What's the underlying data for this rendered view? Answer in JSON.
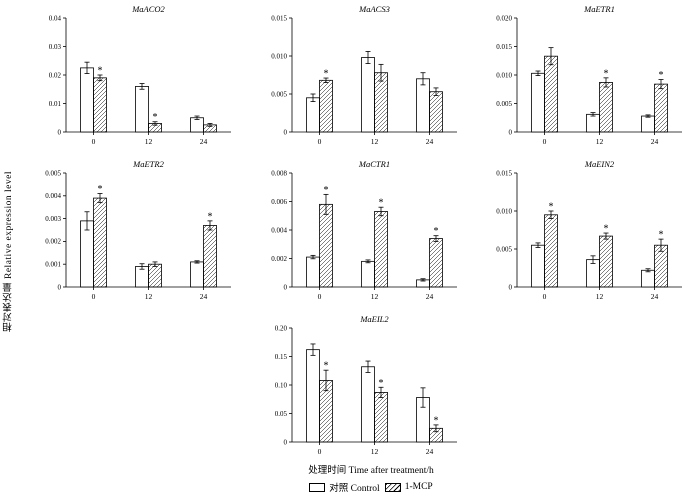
{
  "axis": {
    "ylabel": "相对表达量 Relative expression level",
    "xlabel": "处理时间 Time after treatment/h"
  },
  "legend": {
    "control": "对照 Control",
    "mcp": "1-MCP"
  },
  "chart_data": [
    {
      "type": "bar",
      "title": "MaACO2",
      "categories": [
        "0",
        "12",
        "24"
      ],
      "ylim": [
        0,
        0.04
      ],
      "yticks": [
        0,
        0.01,
        0.02,
        0.03,
        0.04
      ],
      "ytick_labels": [
        "0",
        "0.01",
        "0.02",
        "0.03",
        "0.04"
      ],
      "series": [
        {
          "name": "Control",
          "values": [
            0.0225,
            0.016,
            0.005
          ],
          "errors": [
            0.002,
            0.001,
            0.0006
          ],
          "sig": [
            false,
            false,
            false
          ]
        },
        {
          "name": "1-MCP",
          "values": [
            0.019,
            0.003,
            0.0025
          ],
          "errors": [
            0.001,
            0.0006,
            0.0005
          ],
          "sig": [
            true,
            true,
            false
          ]
        }
      ]
    },
    {
      "type": "bar",
      "title": "MaACS3",
      "categories": [
        "0",
        "12",
        "24"
      ],
      "ylim": [
        0,
        0.015
      ],
      "yticks": [
        0,
        0.005,
        0.01,
        0.015
      ],
      "ytick_labels": [
        "0",
        "0.005",
        "0.010",
        "0.015"
      ],
      "series": [
        {
          "name": "Control",
          "values": [
            0.0045,
            0.0098,
            0.007
          ],
          "errors": [
            0.0005,
            0.0008,
            0.0008
          ],
          "sig": [
            false,
            false,
            false
          ]
        },
        {
          "name": "1-MCP",
          "values": [
            0.0068,
            0.0078,
            0.0053
          ],
          "errors": [
            0.0003,
            0.0011,
            0.0005
          ],
          "sig": [
            true,
            false,
            false
          ]
        }
      ]
    },
    {
      "type": "bar",
      "title": "MaETR1",
      "categories": [
        "0",
        "12",
        "24"
      ],
      "ylim": [
        0,
        0.02
      ],
      "yticks": [
        0,
        0.005,
        0.01,
        0.015,
        0.02
      ],
      "ytick_labels": [
        "0",
        "0.005",
        "0.010",
        "0.015",
        "0.020"
      ],
      "series": [
        {
          "name": "Control",
          "values": [
            0.0103,
            0.0031,
            0.0028
          ],
          "errors": [
            0.0004,
            0.0003,
            0.0002
          ],
          "sig": [
            false,
            false,
            false
          ]
        },
        {
          "name": "1-MCP",
          "values": [
            0.0133,
            0.0087,
            0.0084
          ],
          "errors": [
            0.0015,
            0.0008,
            0.0008
          ],
          "sig": [
            false,
            true,
            true
          ]
        }
      ]
    },
    {
      "type": "bar",
      "title": "MaETR2",
      "categories": [
        "0",
        "12",
        "24"
      ],
      "ylim": [
        0,
        0.005
      ],
      "yticks": [
        0,
        0.001,
        0.002,
        0.003,
        0.004,
        0.005
      ],
      "ytick_labels": [
        "0",
        "0.001",
        "0.002",
        "0.003",
        "0.004",
        "0.005"
      ],
      "series": [
        {
          "name": "Control",
          "values": [
            0.0029,
            0.0009,
            0.0011
          ],
          "errors": [
            0.0004,
            0.00012,
            5e-05
          ],
          "sig": [
            false,
            false,
            false
          ]
        },
        {
          "name": "1-MCP",
          "values": [
            0.0039,
            0.001,
            0.0027
          ],
          "errors": [
            0.0002,
            0.0001,
            0.0002
          ],
          "sig": [
            true,
            false,
            true
          ]
        }
      ]
    },
    {
      "type": "bar",
      "title": "MaCTR1",
      "categories": [
        "0",
        "12",
        "24"
      ],
      "ylim": [
        0,
        0.008
      ],
      "yticks": [
        0,
        0.002,
        0.004,
        0.006,
        0.008
      ],
      "ytick_labels": [
        "0",
        "0.002",
        "0.004",
        "0.006",
        "0.008"
      ],
      "series": [
        {
          "name": "Control",
          "values": [
            0.0021,
            0.0018,
            0.0005
          ],
          "errors": [
            0.00012,
            0.0001,
            8e-05
          ],
          "sig": [
            false,
            false,
            false
          ]
        },
        {
          "name": "1-MCP",
          "values": [
            0.0058,
            0.0053,
            0.0034
          ],
          "errors": [
            0.0007,
            0.0003,
            0.0002
          ],
          "sig": [
            true,
            true,
            true
          ]
        }
      ]
    },
    {
      "type": "bar",
      "title": "MaEIN2",
      "categories": [
        "0",
        "12",
        "24"
      ],
      "ylim": [
        0,
        0.015
      ],
      "yticks": [
        0,
        0.005,
        0.01,
        0.015
      ],
      "ytick_labels": [
        "0",
        "0.005",
        "0.010",
        "0.015"
      ],
      "series": [
        {
          "name": "Control",
          "values": [
            0.0055,
            0.0036,
            0.0022
          ],
          "errors": [
            0.0003,
            0.0005,
            0.0002
          ],
          "sig": [
            false,
            false,
            false
          ]
        },
        {
          "name": "1-MCP",
          "values": [
            0.0095,
            0.0067,
            0.0055
          ],
          "errors": [
            0.0005,
            0.0004,
            0.0008
          ],
          "sig": [
            true,
            true,
            true
          ]
        }
      ]
    },
    {
      "type": "bar",
      "title": "MaEIL2",
      "categories": [
        "0",
        "12",
        "24"
      ],
      "ylim": [
        0,
        0.2
      ],
      "yticks": [
        0,
        0.05,
        0.1,
        0.15,
        0.2
      ],
      "ytick_labels": [
        "0",
        "0.05",
        "0.10",
        "0.15",
        "0.20"
      ],
      "series": [
        {
          "name": "Control",
          "values": [
            0.162,
            0.132,
            0.078
          ],
          "errors": [
            0.01,
            0.01,
            0.017
          ],
          "sig": [
            false,
            false,
            false
          ]
        },
        {
          "name": "1-MCP",
          "values": [
            0.108,
            0.087,
            0.024
          ],
          "errors": [
            0.018,
            0.009,
            0.006
          ],
          "sig": [
            true,
            true,
            true
          ]
        }
      ]
    }
  ]
}
